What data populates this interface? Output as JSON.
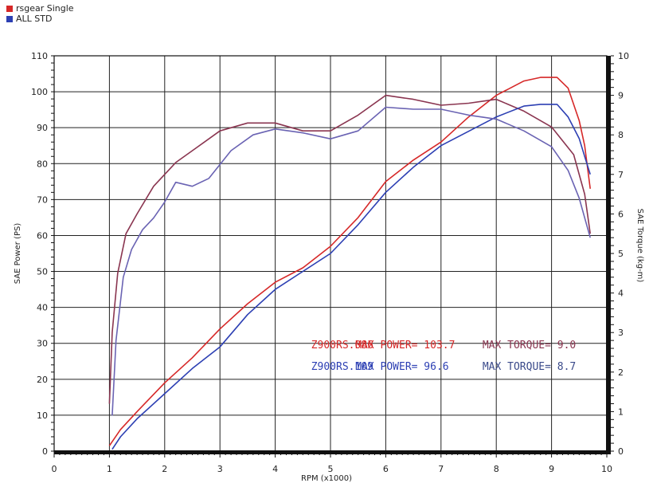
{
  "chart_data": {
    "type": "line",
    "legend": [
      {
        "name": "rsgear Single",
        "color": "#d62828"
      },
      {
        "name": "ALL STD",
        "color": "#2c3fb3"
      }
    ],
    "xlabel": "RPM (x1000)",
    "ylabel_left": "SAE Power (PS)",
    "ylabel_right": "SAE Torque (kg-m)",
    "xlim": [
      0,
      10
    ],
    "ylim_left": [
      0,
      110
    ],
    "ylim_right": [
      0,
      10
    ],
    "x_ticks": [
      "0",
      "1",
      "2",
      "3",
      "4",
      "5",
      "6",
      "7",
      "8",
      "9",
      "10"
    ],
    "y_ticks_left": [
      "0",
      "10",
      "20",
      "30",
      "40",
      "50",
      "60",
      "70",
      "80",
      "90",
      "100",
      "110"
    ],
    "y_ticks_right": [
      "0",
      "1",
      "2",
      "3",
      "4",
      "5",
      "6",
      "7",
      "8",
      "9",
      "10"
    ],
    "grid": true,
    "series": [
      {
        "name": "rsgear Single",
        "measure": "power",
        "axis": "left",
        "color": "#d62828",
        "points": [
          [
            1.0,
            1.5
          ],
          [
            1.2,
            6
          ],
          [
            1.5,
            11
          ],
          [
            2.0,
            19
          ],
          [
            2.5,
            26
          ],
          [
            3.0,
            34
          ],
          [
            3.5,
            41
          ],
          [
            4.0,
            47
          ],
          [
            4.5,
            51
          ],
          [
            5.0,
            57
          ],
          [
            5.5,
            65
          ],
          [
            6.0,
            75
          ],
          [
            6.5,
            81
          ],
          [
            7.0,
            86
          ],
          [
            7.5,
            93
          ],
          [
            8.0,
            99
          ],
          [
            8.5,
            103
          ],
          [
            8.8,
            104
          ],
          [
            9.1,
            104
          ],
          [
            9.3,
            101
          ],
          [
            9.5,
            92
          ],
          [
            9.6,
            85
          ],
          [
            9.7,
            73
          ]
        ]
      },
      {
        "name": "rsgear Single",
        "measure": "torque",
        "axis": "right",
        "color": "#8a3550",
        "points": [
          [
            1.0,
            1.2
          ],
          [
            1.05,
            3.0
          ],
          [
            1.15,
            4.5
          ],
          [
            1.3,
            5.5
          ],
          [
            1.5,
            6.0
          ],
          [
            1.8,
            6.7
          ],
          [
            2.2,
            7.3
          ],
          [
            2.6,
            7.7
          ],
          [
            3.0,
            8.1
          ],
          [
            3.5,
            8.3
          ],
          [
            4.0,
            8.3
          ],
          [
            4.5,
            8.1
          ],
          [
            5.0,
            8.1
          ],
          [
            5.5,
            8.5
          ],
          [
            6.0,
            9.0
          ],
          [
            6.5,
            8.9
          ],
          [
            7.0,
            8.75
          ],
          [
            7.5,
            8.8
          ],
          [
            8.0,
            8.9
          ],
          [
            8.5,
            8.6
          ],
          [
            9.0,
            8.2
          ],
          [
            9.4,
            7.5
          ],
          [
            9.6,
            6.5
          ],
          [
            9.7,
            5.5
          ]
        ]
      },
      {
        "name": "ALL STD",
        "measure": "power",
        "axis": "left",
        "color": "#2c3fb3",
        "points": [
          [
            1.05,
            0.5
          ],
          [
            1.2,
            4
          ],
          [
            1.5,
            9
          ],
          [
            2.0,
            16
          ],
          [
            2.5,
            23
          ],
          [
            3.0,
            29
          ],
          [
            3.5,
            38
          ],
          [
            4.0,
            45
          ],
          [
            4.5,
            50
          ],
          [
            5.0,
            55
          ],
          [
            5.5,
            63
          ],
          [
            6.0,
            72
          ],
          [
            6.5,
            79
          ],
          [
            7.0,
            85
          ],
          [
            7.5,
            89
          ],
          [
            8.0,
            93
          ],
          [
            8.5,
            96
          ],
          [
            8.8,
            96.5
          ],
          [
            9.1,
            96.5
          ],
          [
            9.3,
            93
          ],
          [
            9.5,
            87
          ],
          [
            9.6,
            82
          ],
          [
            9.7,
            77
          ]
        ]
      },
      {
        "name": "ALL STD",
        "measure": "torque",
        "axis": "right",
        "color": "#6a63b3",
        "points": [
          [
            1.05,
            0.9
          ],
          [
            1.12,
            2.8
          ],
          [
            1.25,
            4.4
          ],
          [
            1.4,
            5.1
          ],
          [
            1.6,
            5.6
          ],
          [
            1.8,
            5.9
          ],
          [
            2.0,
            6.3
          ],
          [
            2.2,
            6.8
          ],
          [
            2.5,
            6.7
          ],
          [
            2.8,
            6.9
          ],
          [
            3.2,
            7.6
          ],
          [
            3.6,
            8.0
          ],
          [
            4.0,
            8.15
          ],
          [
            4.5,
            8.05
          ],
          [
            5.0,
            7.9
          ],
          [
            5.5,
            8.1
          ],
          [
            6.0,
            8.7
          ],
          [
            6.5,
            8.65
          ],
          [
            7.0,
            8.65
          ],
          [
            7.5,
            8.5
          ],
          [
            8.0,
            8.4
          ],
          [
            8.5,
            8.1
          ],
          [
            9.0,
            7.7
          ],
          [
            9.3,
            7.1
          ],
          [
            9.5,
            6.4
          ],
          [
            9.7,
            5.4
          ]
        ]
      }
    ],
    "annotations": [
      {
        "text": "Z900RS.086",
        "x": 4.65,
        "y": 29.5,
        "color": "#d62828"
      },
      {
        "text": "MAX POWER= 103.7",
        "x": 5.45,
        "y": 29.5,
        "color": "#d62828"
      },
      {
        "text": "MAX TORQUE= 9.0",
        "x": 7.75,
        "y": 29.5,
        "color": "#8a3550"
      },
      {
        "text": "Z900RS.109",
        "x": 4.65,
        "y": 23.5,
        "color": "#2c3fb3"
      },
      {
        "text": "MAX POWER= 96.6",
        "x": 5.45,
        "y": 23.5,
        "color": "#2c3fb3"
      },
      {
        "text": "MAX TORQUE= 8.7",
        "x": 7.75,
        "y": 23.5,
        "color": "#3a4a8a"
      }
    ]
  }
}
